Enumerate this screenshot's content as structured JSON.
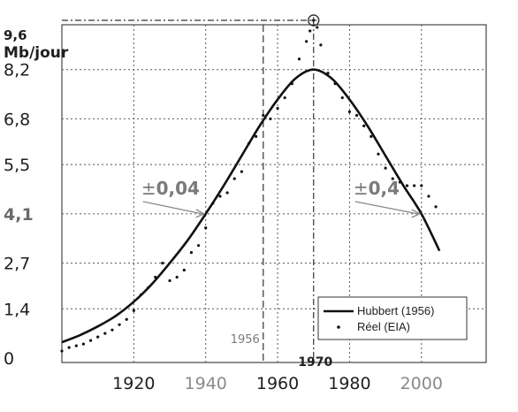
{
  "chart_data": {
    "type": "line",
    "ylabel": "Mb/jour",
    "x_ticks": [
      "1920",
      "1940",
      "1960",
      "1980",
      "2000"
    ],
    "x_ticks_highlight_grey": [
      "1940",
      "2000"
    ],
    "y_ticks": [
      "0",
      "1,4",
      "2,7",
      "4,1",
      "5,5",
      "6,8",
      "8,2"
    ],
    "y_tick_values": [
      0,
      1.4,
      2.7,
      4.1,
      5.5,
      6.8,
      8.2
    ],
    "xlim": [
      1900,
      2018
    ],
    "ylim": [
      0,
      9.6
    ],
    "peak_label": "9,6",
    "peak": {
      "x": 1970,
      "y": 9.6
    },
    "grid": true,
    "legend_position": "bottom-right",
    "series": [
      {
        "name": "Hubbert (1956)",
        "style": "solid-line",
        "color": "#111111",
        "x": [
          1900,
          1905,
          1910,
          1915,
          1920,
          1925,
          1930,
          1935,
          1940,
          1945,
          1950,
          1955,
          1960,
          1965,
          1970,
          1975,
          1980,
          1985,
          1990,
          1995,
          2000,
          2005
        ],
        "values": [
          0.45,
          0.65,
          0.9,
          1.2,
          1.6,
          2.1,
          2.7,
          3.35,
          4.1,
          4.9,
          5.75,
          6.6,
          7.35,
          7.95,
          8.2,
          7.95,
          7.35,
          6.6,
          5.75,
          4.9,
          4.1,
          3.05
        ]
      },
      {
        "name": "Réel (EIA)",
        "style": "dots",
        "color": "#111111",
        "x": [
          1900,
          1902,
          1904,
          1906,
          1908,
          1910,
          1912,
          1914,
          1916,
          1918,
          1920,
          1922,
          1924,
          1926,
          1928,
          1930,
          1932,
          1934,
          1936,
          1938,
          1940,
          1942,
          1944,
          1946,
          1948,
          1950,
          1952,
          1954,
          1956,
          1958,
          1960,
          1962,
          1964,
          1966,
          1968,
          1969,
          1970,
          1971,
          1972,
          1974,
          1976,
          1978,
          1980,
          1982,
          1984,
          1986,
          1988,
          1990,
          1992,
          1994,
          1996,
          1998,
          2000,
          2002,
          2004
        ],
        "values": [
          0.2,
          0.3,
          0.35,
          0.4,
          0.5,
          0.6,
          0.7,
          0.8,
          0.95,
          1.1,
          1.35,
          1.8,
          2.0,
          2.3,
          2.7,
          2.2,
          2.3,
          2.5,
          3.0,
          3.2,
          3.7,
          4.4,
          4.6,
          4.7,
          5.1,
          5.3,
          6.1,
          6.3,
          6.9,
          6.8,
          7.1,
          7.4,
          7.8,
          8.5,
          9.0,
          9.3,
          9.6,
          9.4,
          8.9,
          8.1,
          7.8,
          7.4,
          7.0,
          6.9,
          6.6,
          6.3,
          5.8,
          5.4,
          5.1,
          5.0,
          4.9,
          4.9,
          4.9,
          4.6,
          4.3
        ]
      }
    ],
    "annotations": [
      {
        "prefix": "±",
        "value": "0,04",
        "x_label": 1927,
        "y_label": 5.0,
        "arrow_to": {
          "x": 1940,
          "y": 4.1
        }
      },
      {
        "prefix": "±",
        "value": "0,4",
        "x_label": 1986,
        "y_label": 5.0,
        "arrow_to": {
          "x": 2000,
          "y": 4.1
        }
      }
    ],
    "reference_lines": [
      {
        "x": 1956,
        "label": "1956",
        "style": "dashed"
      },
      {
        "x": 1970,
        "label": "1970",
        "style": "dash-dot"
      }
    ],
    "legend": [
      {
        "label": "Hubbert (1956)",
        "marker": "line"
      },
      {
        "label": "Réel (EIA)",
        "marker": "dot"
      }
    ]
  }
}
